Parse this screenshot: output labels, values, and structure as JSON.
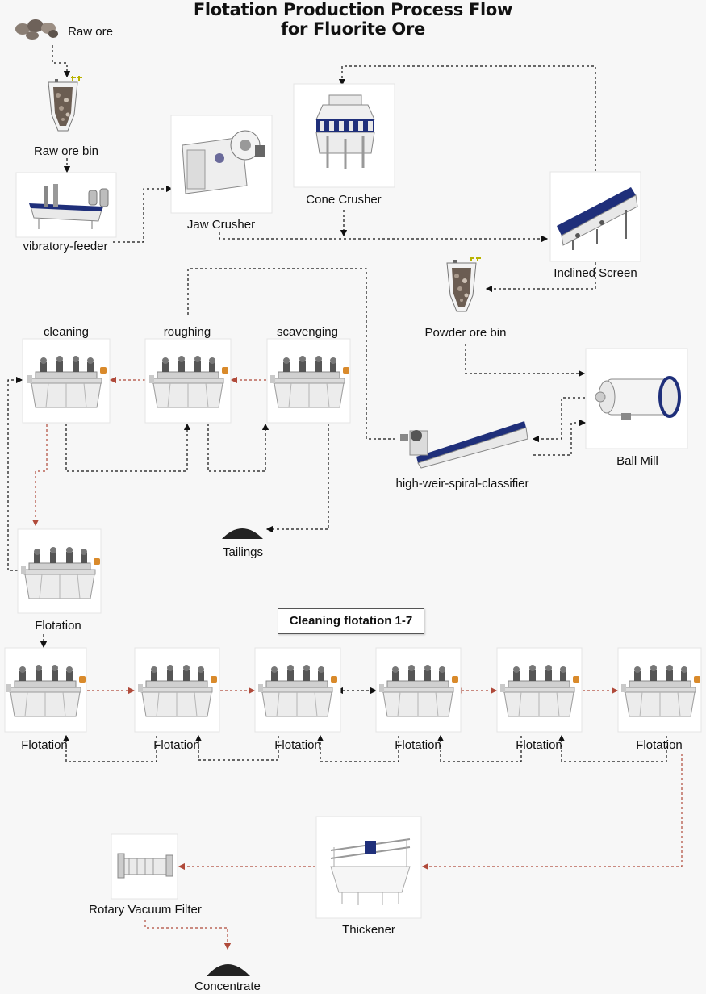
{
  "title": {
    "line1": "Flotation Production Process Flow",
    "line2": "for Fluorite Ore"
  },
  "labels": {
    "raw_ore": "Raw ore",
    "raw_ore_bin": "Raw ore bin",
    "vibratory_feeder": "vibratory-feeder",
    "jaw_crusher": "Jaw Crusher",
    "cone_crusher": "Cone Crusher",
    "inclined_screen": "Inclined Screen",
    "powder_ore_bin": "Powder ore bin",
    "ball_mill": "Ball Mill",
    "spiral_classifier": "high-weir-spiral-classifier",
    "cleaning": "cleaning",
    "roughing": "roughing",
    "scavenging": "scavenging",
    "tailings": "Tailings",
    "flotation": "Flotation",
    "cleaning_flotation": "Cleaning flotation 1-7",
    "flotation_1": "Flotation",
    "flotation_2": "Flotation",
    "flotation_3": "Flotation",
    "flotation_4": "Flotation",
    "flotation_5": "Flotation",
    "flotation_6": "Flotation",
    "thickener": "Thickener",
    "rotary_vacuum_filter": "Rotary Vacuum Filter",
    "concentrate": "Concentrate"
  },
  "colors": {
    "arrow_black": "#111111",
    "arrow_red": "#b04a3a",
    "motor_orange": "#d98a2b",
    "machine_blue": "#1f2f7a"
  }
}
